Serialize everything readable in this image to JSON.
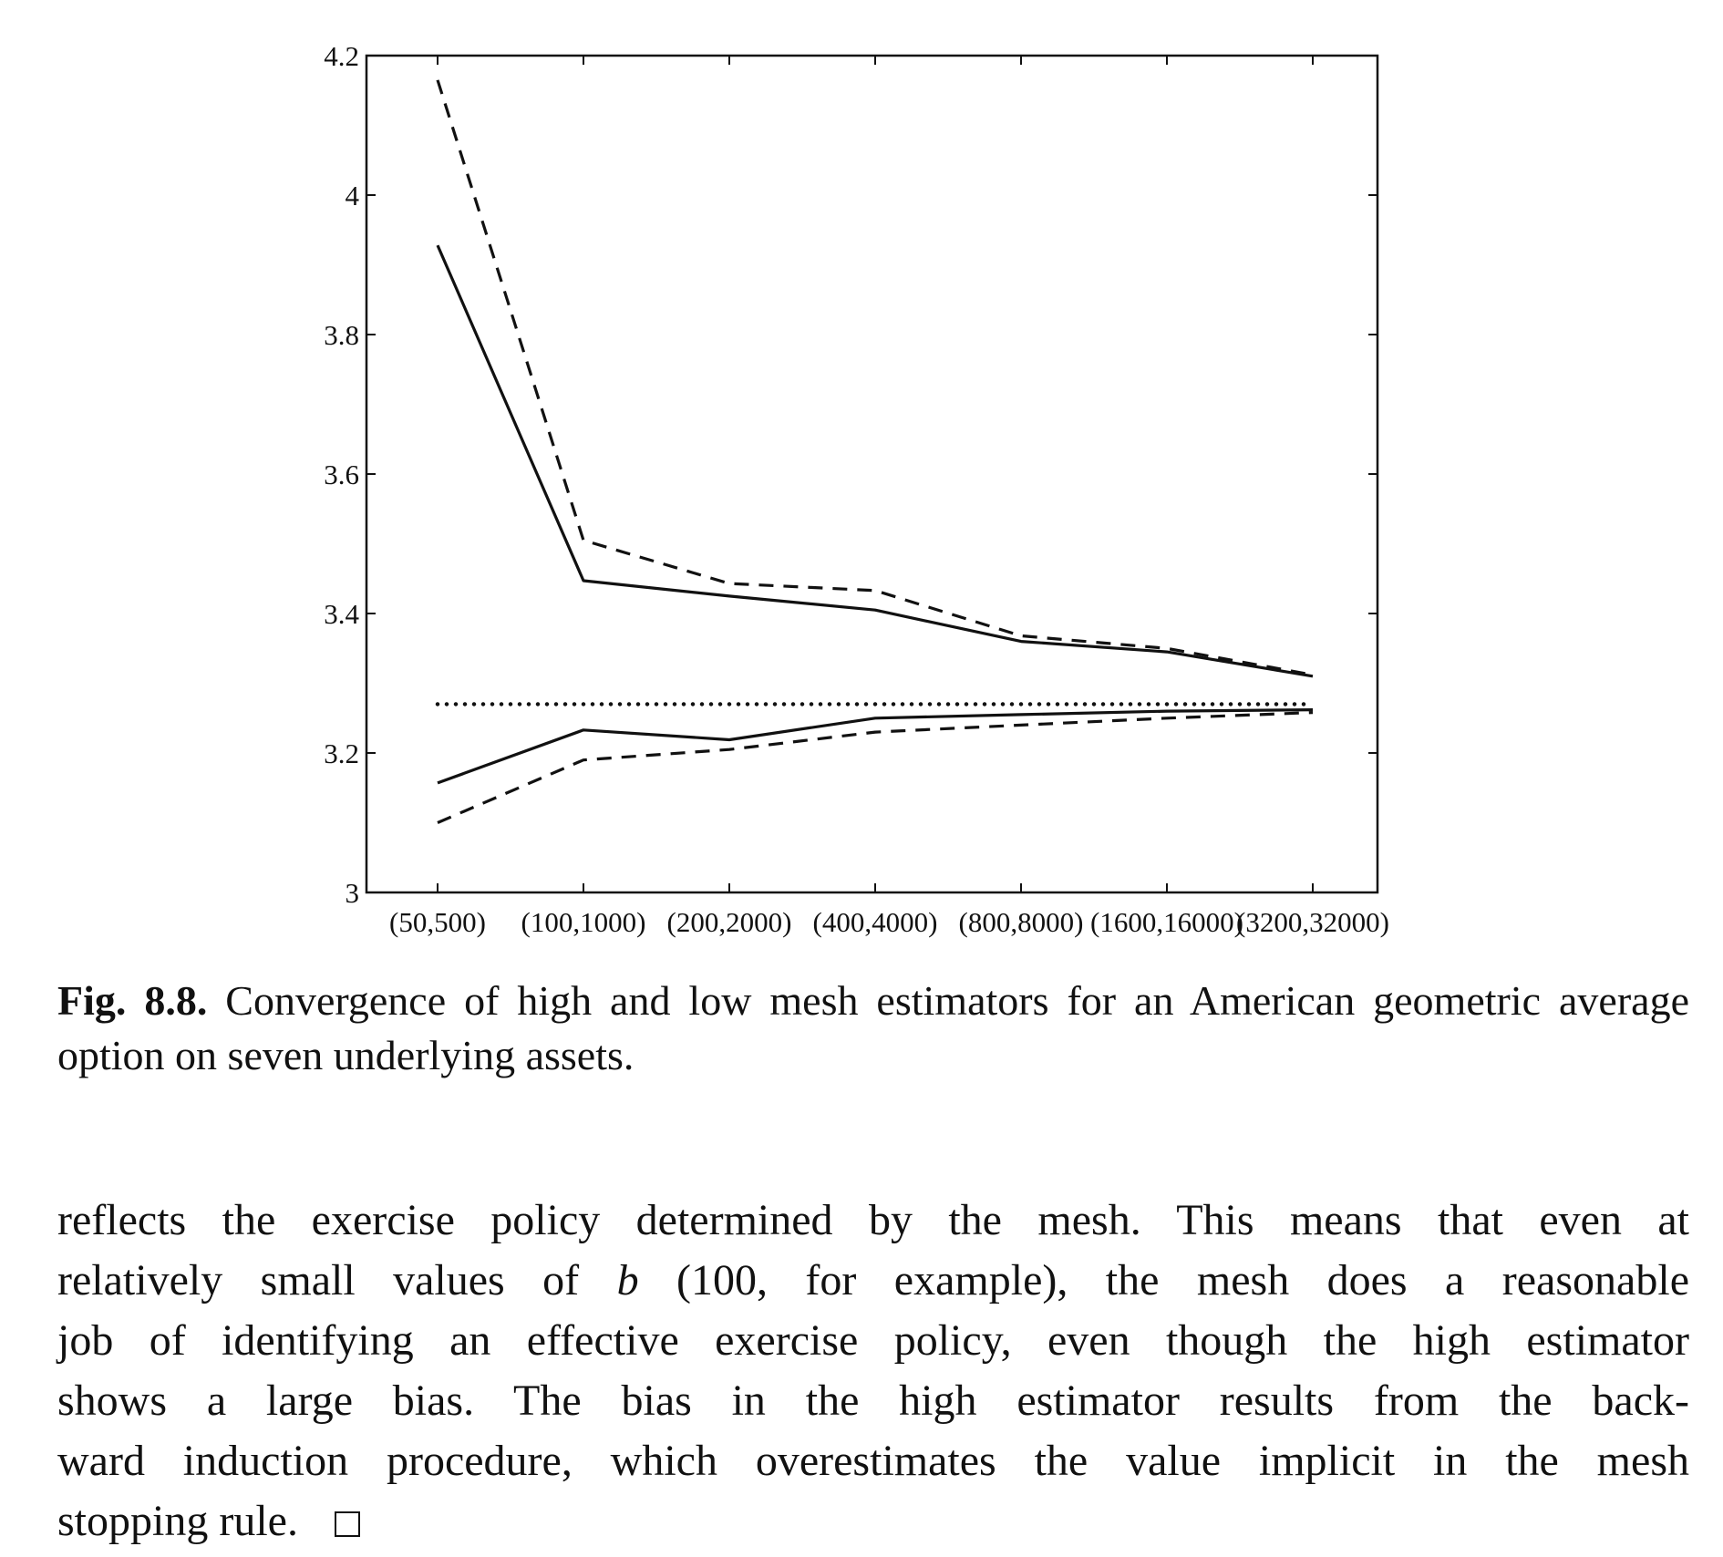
{
  "chart_data": {
    "type": "line",
    "categories": [
      "(50,500)",
      "(100,1000)",
      "(200,2000)",
      "(400,4000)",
      "(800,8000)",
      "(1600,16000)",
      "(3200,32000)"
    ],
    "ylim": [
      3,
      4.2
    ],
    "yticks": [
      "3",
      "3.2",
      "3.4",
      "3.6",
      "3.8",
      "4",
      "4.2"
    ],
    "ytick_values": [
      3,
      3.2,
      3.4,
      3.6,
      3.8,
      4,
      4.2
    ],
    "grid": false,
    "series": [
      {
        "style": "dashed",
        "values": [
          4.165,
          3.505,
          3.443,
          3.433,
          3.368,
          3.35,
          3.312
        ]
      },
      {
        "style": "solid",
        "values": [
          3.928,
          3.447,
          3.425,
          3.405,
          3.36,
          3.345,
          3.31
        ]
      },
      {
        "style": "solid",
        "values": [
          3.157,
          3.233,
          3.219,
          3.25,
          3.255,
          3.26,
          3.262
        ]
      },
      {
        "style": "dashed",
        "values": [
          3.1,
          3.19,
          3.205,
          3.23,
          3.24,
          3.25,
          3.258
        ]
      }
    ],
    "reference_line": {
      "style": "dotted",
      "value": 3.27
    }
  },
  "caption": {
    "label": "Fig. 8.8.",
    "text": "Convergence of high and low mesh estimators for an American geometric average option on seven underlying assets."
  },
  "body": {
    "line1": "reflects the exercise policy determined by the mesh. This means that even at",
    "line2_pre": "relatively small values of ",
    "line2_var": "b",
    "line2_post": " (100, for example), the mesh does a reasonable",
    "line3": "job of identifying an effective exercise policy, even though the high estimator",
    "line4": "shows a large bias. The bias in the high estimator results from the back-",
    "line5": "ward induction procedure, which overestimates the value implicit in the mesh",
    "line6": "stopping rule."
  }
}
